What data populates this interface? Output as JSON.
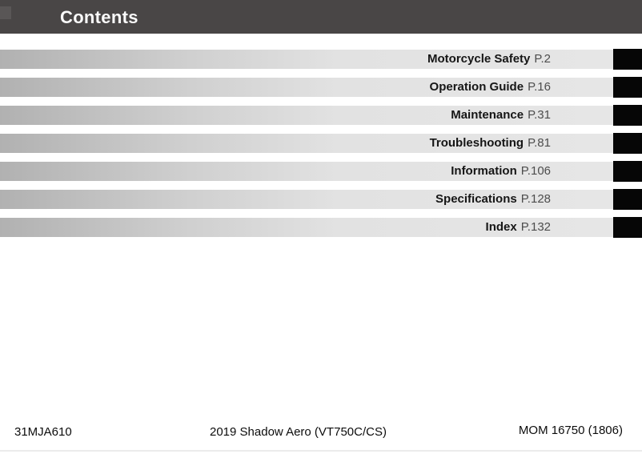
{
  "header": {
    "title": "Contents"
  },
  "toc": {
    "items": [
      {
        "label": "Motorcycle Safety",
        "page": "P.2"
      },
      {
        "label": "Operation Guide",
        "page": "P.16"
      },
      {
        "label": "Maintenance",
        "page": "P.31"
      },
      {
        "label": "Troubleshooting",
        "page": "P.81"
      },
      {
        "label": "Information",
        "page": "P.106"
      },
      {
        "label": "Specifications",
        "page": "P.128"
      },
      {
        "label": "Index",
        "page": "P.132"
      }
    ]
  },
  "footer": {
    "left": "31MJA610",
    "center": "2019 Shadow Aero (VT750C/CS)",
    "right": "MOM 16750 (1806)"
  },
  "colors": {
    "header_background": "#494646",
    "bar_gradient_start": "#b1b1b1",
    "bar_gradient_end": "#e6e6e6",
    "tab_black": "#060606",
    "page_ref_gray": "#4d4d4d"
  }
}
